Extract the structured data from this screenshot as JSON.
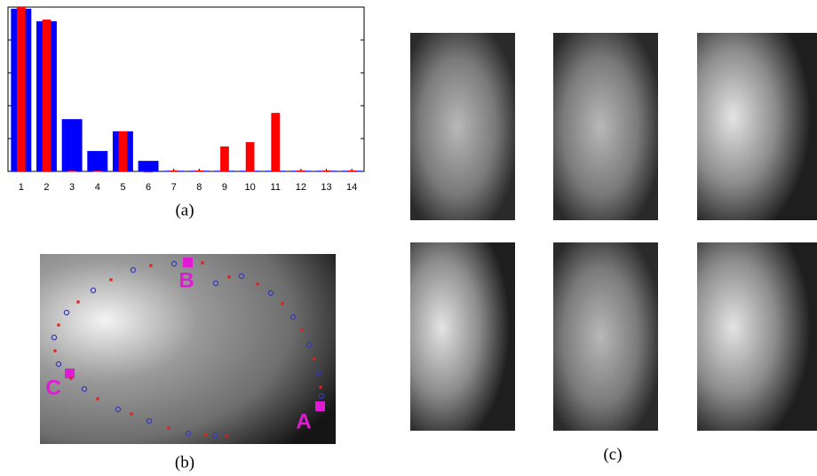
{
  "chart_data": {
    "type": "bar",
    "categories": [
      "1",
      "2",
      "3",
      "4",
      "5",
      "6",
      "7",
      "8",
      "9",
      "10",
      "11",
      "12",
      "13",
      "14"
    ],
    "series": [
      {
        "color": "#0000ff",
        "values": [
          4.95,
          4.57,
          1.59,
          0.62,
          1.22,
          0.32,
          0.02,
          0.02,
          0.02,
          0.02,
          0.02,
          0.02,
          0.02,
          0.02
        ]
      },
      {
        "color": "#ff0000",
        "values": [
          5.0,
          4.62,
          0.02,
          0.02,
          1.22,
          0,
          0.03,
          0.03,
          0.76,
          0.89,
          1.78,
          0.03,
          0.03,
          0.03
        ]
      }
    ],
    "ylim": [
      0,
      5
    ],
    "yticks": [
      0,
      1,
      2,
      3,
      4,
      5
    ]
  },
  "panel_b": {
    "labels": [
      "A",
      "B",
      "C"
    ]
  },
  "captions": [
    "(a)",
    "(b)",
    "(c)"
  ]
}
